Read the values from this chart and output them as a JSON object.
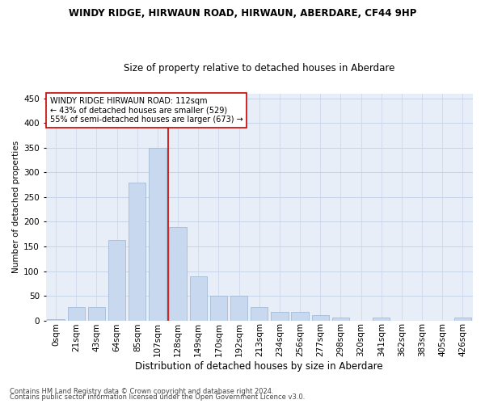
{
  "title": "WINDY RIDGE, HIRWAUN ROAD, HIRWAUN, ABERDARE, CF44 9HP",
  "subtitle": "Size of property relative to detached houses in Aberdare",
  "xlabel": "Distribution of detached houses by size in Aberdare",
  "ylabel": "Number of detached properties",
  "footer_line1": "Contains HM Land Registry data © Crown copyright and database right 2024.",
  "footer_line2": "Contains public sector information licensed under the Open Government Licence v3.0.",
  "annotation_line1": "WINDY RIDGE HIRWAUN ROAD: 112sqm",
  "annotation_line2": "← 43% of detached houses are smaller (529)",
  "annotation_line3": "55% of semi-detached houses are larger (673) →",
  "bar_color": "#c8d9ef",
  "bar_edge_color": "#9ab3d0",
  "grid_color": "#c8d4e8",
  "background_color": "#e8eef8",
  "vline_color": "#cc0000",
  "categories": [
    "0sqm",
    "21sqm",
    "43sqm",
    "64sqm",
    "85sqm",
    "107sqm",
    "128sqm",
    "149sqm",
    "170sqm",
    "192sqm",
    "213sqm",
    "234sqm",
    "256sqm",
    "277sqm",
    "298sqm",
    "320sqm",
    "341sqm",
    "362sqm",
    "383sqm",
    "405sqm",
    "426sqm"
  ],
  "bar_values": [
    2,
    27,
    27,
    163,
    280,
    350,
    190,
    90,
    50,
    50,
    27,
    17,
    17,
    10,
    5,
    0,
    5,
    0,
    0,
    0,
    5
  ],
  "vline_x": 5.5,
  "ylim": [
    0,
    460
  ],
  "yticks": [
    0,
    50,
    100,
    150,
    200,
    250,
    300,
    350,
    400,
    450
  ],
  "title_fontsize": 8.5,
  "subtitle_fontsize": 8.5,
  "xlabel_fontsize": 8.5,
  "ylabel_fontsize": 7.5,
  "tick_fontsize": 7.5,
  "annotation_fontsize": 7,
  "footer_fontsize": 6
}
